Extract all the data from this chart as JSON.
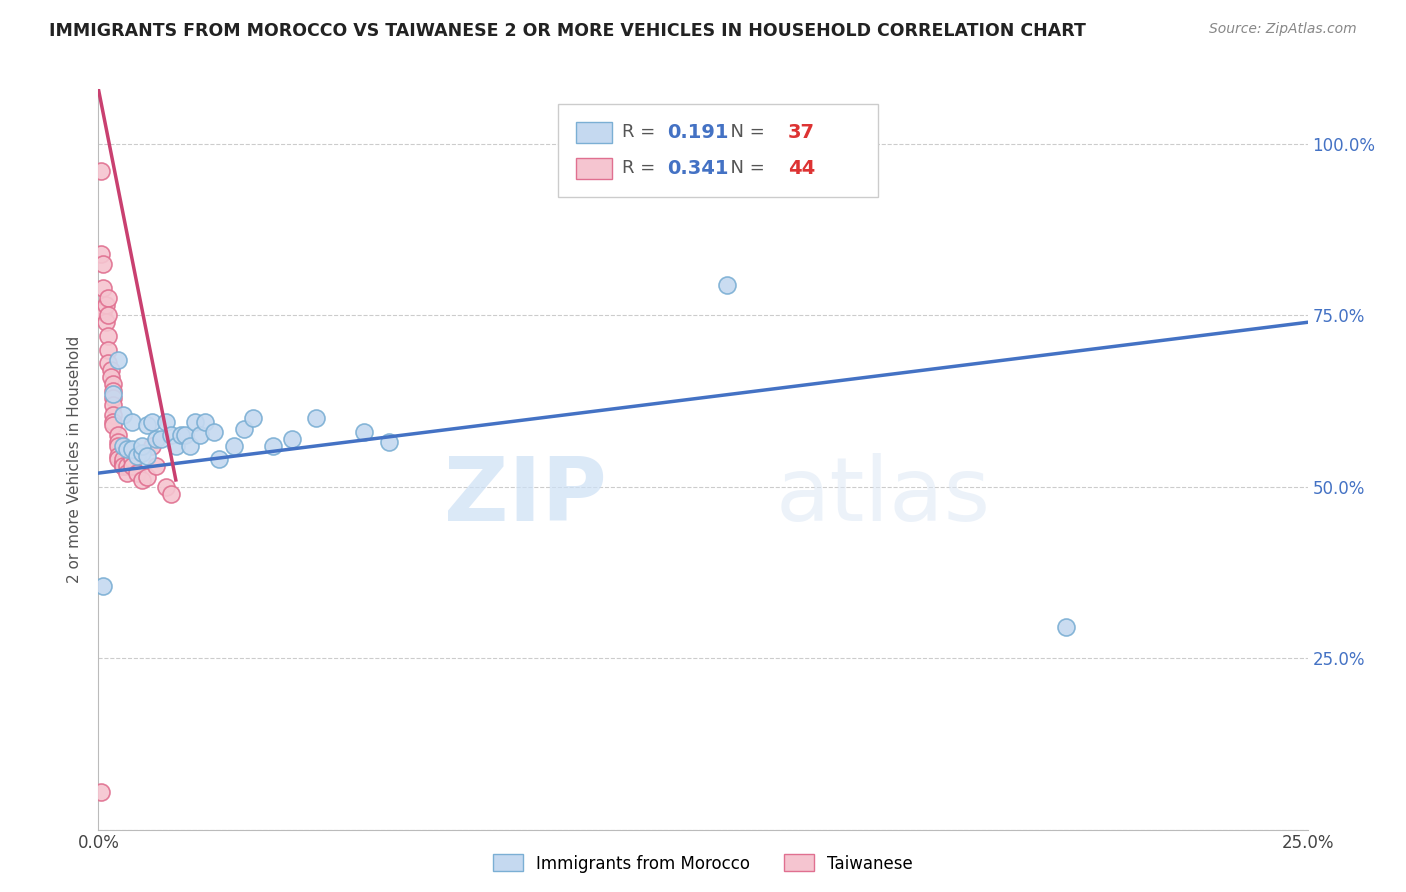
{
  "title": "IMMIGRANTS FROM MOROCCO VS TAIWANESE 2 OR MORE VEHICLES IN HOUSEHOLD CORRELATION CHART",
  "source": "Source: ZipAtlas.com",
  "ylabel": "2 or more Vehicles in Household",
  "xlim": [
    0.0,
    0.25
  ],
  "ylim": [
    0.0,
    1.08
  ],
  "blue_R": 0.191,
  "blue_N": 37,
  "pink_R": 0.341,
  "pink_N": 44,
  "blue_color": "#c5d9f0",
  "blue_edge": "#7bafd4",
  "pink_color": "#f5c5d0",
  "pink_edge": "#e07090",
  "trend_blue": "#4472c4",
  "trend_pink": "#c94070",
  "blue_scatter_x": [
    0.001,
    0.003,
    0.004,
    0.005,
    0.005,
    0.006,
    0.007,
    0.007,
    0.008,
    0.009,
    0.009,
    0.01,
    0.01,
    0.011,
    0.012,
    0.013,
    0.014,
    0.015,
    0.016,
    0.017,
    0.018,
    0.019,
    0.02,
    0.021,
    0.022,
    0.024,
    0.025,
    0.028,
    0.03,
    0.032,
    0.036,
    0.04,
    0.045,
    0.055,
    0.06,
    0.13,
    0.2
  ],
  "blue_scatter_y": [
    0.355,
    0.635,
    0.685,
    0.605,
    0.56,
    0.555,
    0.555,
    0.595,
    0.545,
    0.55,
    0.56,
    0.545,
    0.59,
    0.595,
    0.57,
    0.57,
    0.595,
    0.575,
    0.56,
    0.575,
    0.575,
    0.56,
    0.595,
    0.575,
    0.595,
    0.58,
    0.54,
    0.56,
    0.585,
    0.6,
    0.56,
    0.57,
    0.6,
    0.58,
    0.565,
    0.795,
    0.295
  ],
  "pink_scatter_x": [
    0.0005,
    0.0005,
    0.001,
    0.001,
    0.001,
    0.001,
    0.0015,
    0.0015,
    0.002,
    0.002,
    0.002,
    0.002,
    0.002,
    0.0025,
    0.0025,
    0.003,
    0.003,
    0.003,
    0.003,
    0.003,
    0.003,
    0.003,
    0.004,
    0.004,
    0.004,
    0.004,
    0.004,
    0.005,
    0.005,
    0.005,
    0.005,
    0.005,
    0.006,
    0.006,
    0.007,
    0.007,
    0.008,
    0.009,
    0.01,
    0.011,
    0.012,
    0.014,
    0.015,
    0.0005
  ],
  "pink_scatter_y": [
    0.96,
    0.84,
    0.825,
    0.79,
    0.76,
    0.755,
    0.765,
    0.74,
    0.775,
    0.75,
    0.72,
    0.7,
    0.68,
    0.67,
    0.66,
    0.65,
    0.64,
    0.63,
    0.62,
    0.605,
    0.595,
    0.59,
    0.575,
    0.565,
    0.56,
    0.545,
    0.54,
    0.535,
    0.53,
    0.535,
    0.54,
    0.53,
    0.53,
    0.52,
    0.54,
    0.53,
    0.52,
    0.51,
    0.515,
    0.56,
    0.53,
    0.5,
    0.49,
    0.055
  ],
  "watermark_zip": "ZIP",
  "watermark_atlas": "atlas",
  "blue_trend_x": [
    0.0,
    0.25
  ],
  "blue_trend_y": [
    0.52,
    0.74
  ],
  "pink_trend_x": [
    0.0,
    0.016
  ],
  "pink_trend_y": [
    1.08,
    0.51
  ]
}
